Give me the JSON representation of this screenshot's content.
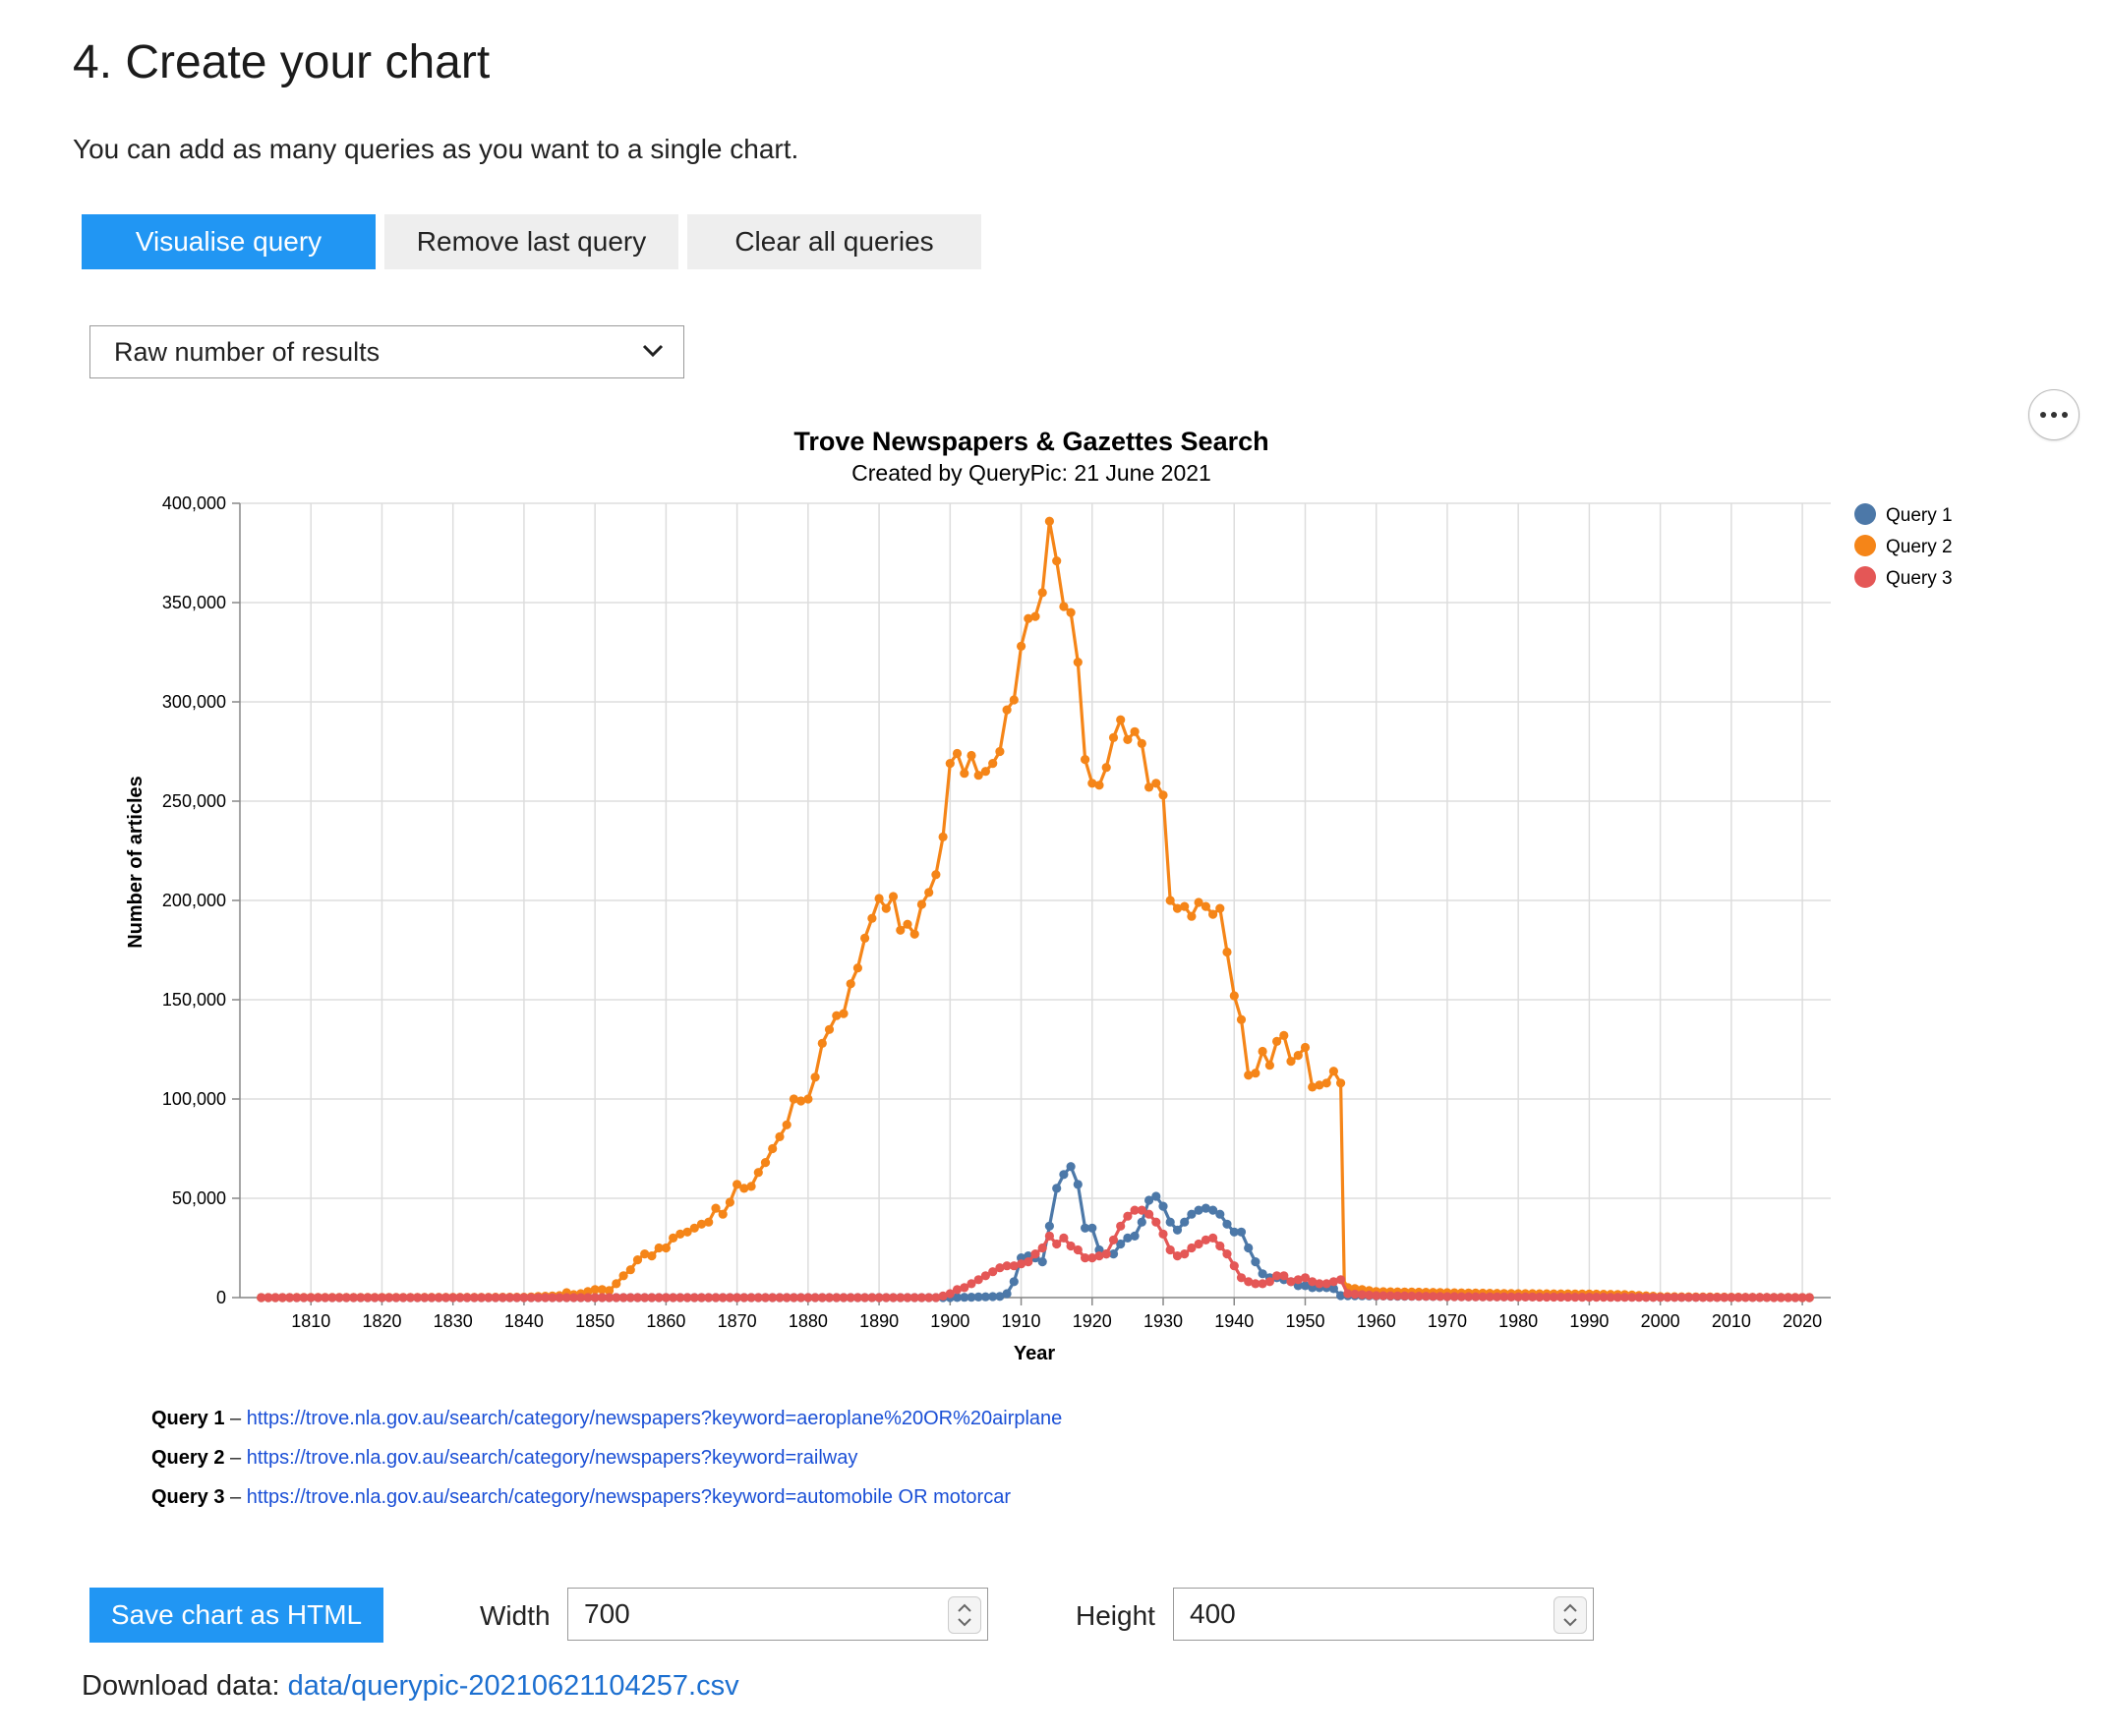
{
  "page": {
    "title": "4. Create your chart",
    "intro": "You can add as many queries as you want to a single chart."
  },
  "buttons": {
    "visualise": "Visualise query",
    "remove_last": "Remove last query",
    "clear_all": "Clear all queries",
    "save_html": "Save chart as HTML"
  },
  "select": {
    "value": "Raw number of results"
  },
  "colors": {
    "primary": "#2196f3",
    "query1": "#4c78a8",
    "query2": "#f58518",
    "query3": "#e45756",
    "link": "#1a4fd6"
  },
  "chart_data": {
    "type": "line",
    "title": "Trove Newspapers & Gazettes Search",
    "subtitle": "Created by QueryPic: 21 June 2021",
    "xlabel": "Year",
    "ylabel": "Number of articles",
    "xlim": [
      1800,
      2024
    ],
    "ylim": [
      0,
      400000
    ],
    "x_ticks": [
      1810,
      1820,
      1830,
      1840,
      1850,
      1860,
      1870,
      1880,
      1890,
      1900,
      1910,
      1920,
      1930,
      1940,
      1950,
      1960,
      1970,
      1980,
      1990,
      2000,
      2010,
      2020
    ],
    "y_ticks": [
      0,
      50000,
      100000,
      150000,
      200000,
      250000,
      300000,
      350000,
      400000
    ],
    "y_tick_labels": [
      "0",
      "50,000",
      "100,000",
      "150,000",
      "200,000",
      "250,000",
      "300,000",
      "350,000",
      "400,000"
    ],
    "grid": true,
    "legend_position": "top-right",
    "series": [
      {
        "name": "Query 1",
        "points": [
          [
            1803,
            0
          ],
          [
            1900,
            0
          ],
          [
            1903,
            200
          ],
          [
            1905,
            400
          ],
          [
            1907,
            600
          ],
          [
            1908,
            2000
          ],
          [
            1909,
            8000
          ],
          [
            1910,
            20000
          ],
          [
            1911,
            21000
          ],
          [
            1912,
            20000
          ],
          [
            1913,
            18000
          ],
          [
            1914,
            36000
          ],
          [
            1915,
            55000
          ],
          [
            1916,
            62000
          ],
          [
            1917,
            66000
          ],
          [
            1918,
            57000
          ],
          [
            1919,
            35000
          ],
          [
            1920,
            35000
          ],
          [
            1921,
            24000
          ],
          [
            1922,
            22000
          ],
          [
            1923,
            22000
          ],
          [
            1924,
            27000
          ],
          [
            1925,
            30000
          ],
          [
            1926,
            31000
          ],
          [
            1927,
            38000
          ],
          [
            1928,
            49000
          ],
          [
            1929,
            51000
          ],
          [
            1930,
            46000
          ],
          [
            1931,
            38000
          ],
          [
            1932,
            34000
          ],
          [
            1933,
            38000
          ],
          [
            1934,
            42000
          ],
          [
            1935,
            44000
          ],
          [
            1936,
            45000
          ],
          [
            1937,
            44000
          ],
          [
            1938,
            42000
          ],
          [
            1939,
            37000
          ],
          [
            1940,
            33000
          ],
          [
            1941,
            33000
          ],
          [
            1942,
            25000
          ],
          [
            1943,
            18000
          ],
          [
            1944,
            12000
          ],
          [
            1945,
            10000
          ],
          [
            1946,
            10000
          ],
          [
            1947,
            9000
          ],
          [
            1948,
            8000
          ],
          [
            1949,
            6000
          ],
          [
            1950,
            6000
          ],
          [
            1951,
            5000
          ],
          [
            1952,
            5000
          ],
          [
            1953,
            5000
          ],
          [
            1954,
            4500
          ],
          [
            1955,
            1000
          ],
          [
            1960,
            800
          ],
          [
            1970,
            500
          ],
          [
            1980,
            400
          ],
          [
            1990,
            300
          ],
          [
            2000,
            200
          ],
          [
            2010,
            100
          ],
          [
            2021,
            0
          ]
        ]
      },
      {
        "name": "Query 2",
        "points": [
          [
            1803,
            0
          ],
          [
            1840,
            200
          ],
          [
            1845,
            1000
          ],
          [
            1846,
            2500
          ],
          [
            1847,
            1500
          ],
          [
            1848,
            2000
          ],
          [
            1849,
            3000
          ],
          [
            1850,
            4000
          ],
          [
            1851,
            4000
          ],
          [
            1852,
            3500
          ],
          [
            1853,
            7000
          ],
          [
            1854,
            11000
          ],
          [
            1855,
            14000
          ],
          [
            1856,
            19000
          ],
          [
            1857,
            22000
          ],
          [
            1858,
            21000
          ],
          [
            1859,
            25000
          ],
          [
            1860,
            25000
          ],
          [
            1861,
            30000
          ],
          [
            1862,
            32000
          ],
          [
            1863,
            33000
          ],
          [
            1864,
            35000
          ],
          [
            1865,
            37000
          ],
          [
            1866,
            38000
          ],
          [
            1867,
            45000
          ],
          [
            1868,
            42000
          ],
          [
            1869,
            48000
          ],
          [
            1870,
            57000
          ],
          [
            1871,
            55000
          ],
          [
            1872,
            56000
          ],
          [
            1873,
            63000
          ],
          [
            1874,
            68000
          ],
          [
            1875,
            75000
          ],
          [
            1876,
            81000
          ],
          [
            1877,
            87000
          ],
          [
            1878,
            100000
          ],
          [
            1879,
            99000
          ],
          [
            1880,
            100000
          ],
          [
            1881,
            111000
          ],
          [
            1882,
            128000
          ],
          [
            1883,
            135000
          ],
          [
            1884,
            142000
          ],
          [
            1885,
            143000
          ],
          [
            1886,
            158000
          ],
          [
            1887,
            166000
          ],
          [
            1888,
            181000
          ],
          [
            1889,
            191000
          ],
          [
            1890,
            201000
          ],
          [
            1891,
            196000
          ],
          [
            1892,
            202000
          ],
          [
            1893,
            185000
          ],
          [
            1894,
            188000
          ],
          [
            1895,
            183000
          ],
          [
            1896,
            198000
          ],
          [
            1897,
            204000
          ],
          [
            1898,
            213000
          ],
          [
            1899,
            232000
          ],
          [
            1900,
            269000
          ],
          [
            1901,
            274000
          ],
          [
            1902,
            264000
          ],
          [
            1903,
            273000
          ],
          [
            1904,
            263000
          ],
          [
            1905,
            265000
          ],
          [
            1906,
            269000
          ],
          [
            1907,
            275000
          ],
          [
            1908,
            296000
          ],
          [
            1909,
            301000
          ],
          [
            1910,
            328000
          ],
          [
            1911,
            342000
          ],
          [
            1912,
            343000
          ],
          [
            1913,
            355000
          ],
          [
            1914,
            391000
          ],
          [
            1915,
            371000
          ],
          [
            1916,
            348000
          ],
          [
            1917,
            345000
          ],
          [
            1918,
            320000
          ],
          [
            1919,
            271000
          ],
          [
            1920,
            259000
          ],
          [
            1921,
            258000
          ],
          [
            1922,
            267000
          ],
          [
            1923,
            282000
          ],
          [
            1924,
            291000
          ],
          [
            1925,
            281000
          ],
          [
            1926,
            285000
          ],
          [
            1927,
            279000
          ],
          [
            1928,
            257000
          ],
          [
            1929,
            259000
          ],
          [
            1930,
            253000
          ],
          [
            1931,
            200000
          ],
          [
            1932,
            196000
          ],
          [
            1933,
            197000
          ],
          [
            1934,
            192000
          ],
          [
            1935,
            199000
          ],
          [
            1936,
            197000
          ],
          [
            1937,
            193000
          ],
          [
            1938,
            196000
          ],
          [
            1939,
            174000
          ],
          [
            1940,
            152000
          ],
          [
            1941,
            140000
          ],
          [
            1942,
            112000
          ],
          [
            1943,
            113000
          ],
          [
            1944,
            124000
          ],
          [
            1945,
            117000
          ],
          [
            1946,
            129000
          ],
          [
            1947,
            132000
          ],
          [
            1948,
            119000
          ],
          [
            1949,
            122000
          ],
          [
            1950,
            126000
          ],
          [
            1951,
            106000
          ],
          [
            1952,
            107000
          ],
          [
            1953,
            108000
          ],
          [
            1954,
            114000
          ],
          [
            1955,
            108000
          ],
          [
            1955.5,
            8000
          ],
          [
            1956,
            5000
          ],
          [
            1960,
            3000
          ],
          [
            1970,
            2500
          ],
          [
            1980,
            2000
          ],
          [
            1990,
            1800
          ],
          [
            1995,
            1500
          ],
          [
            2000,
            500
          ],
          [
            2010,
            200
          ],
          [
            2021,
            0
          ]
        ]
      },
      {
        "name": "Query 3",
        "points": [
          [
            1803,
            0
          ],
          [
            1898,
            0
          ],
          [
            1899,
            800
          ],
          [
            1900,
            2000
          ],
          [
            1901,
            4000
          ],
          [
            1902,
            5000
          ],
          [
            1903,
            7000
          ],
          [
            1904,
            9000
          ],
          [
            1905,
            11000
          ],
          [
            1906,
            13000
          ],
          [
            1907,
            15000
          ],
          [
            1908,
            16000
          ],
          [
            1909,
            16000
          ],
          [
            1910,
            17000
          ],
          [
            1911,
            18000
          ],
          [
            1912,
            22000
          ],
          [
            1913,
            25000
          ],
          [
            1914,
            31000
          ],
          [
            1915,
            27000
          ],
          [
            1916,
            30000
          ],
          [
            1917,
            26000
          ],
          [
            1918,
            24000
          ],
          [
            1919,
            20000
          ],
          [
            1920,
            20000
          ],
          [
            1921,
            21000
          ],
          [
            1922,
            22000
          ],
          [
            1923,
            29000
          ],
          [
            1924,
            36000
          ],
          [
            1925,
            41000
          ],
          [
            1926,
            44000
          ],
          [
            1927,
            44000
          ],
          [
            1928,
            42000
          ],
          [
            1929,
            38000
          ],
          [
            1930,
            32000
          ],
          [
            1931,
            24000
          ],
          [
            1932,
            21000
          ],
          [
            1933,
            22000
          ],
          [
            1934,
            25000
          ],
          [
            1935,
            27000
          ],
          [
            1936,
            29000
          ],
          [
            1937,
            30000
          ],
          [
            1938,
            26000
          ],
          [
            1939,
            22000
          ],
          [
            1940,
            16000
          ],
          [
            1941,
            10000
          ],
          [
            1942,
            8000
          ],
          [
            1943,
            7000
          ],
          [
            1944,
            7000
          ],
          [
            1945,
            8000
          ],
          [
            1946,
            11000
          ],
          [
            1947,
            11000
          ],
          [
            1948,
            8000
          ],
          [
            1949,
            9000
          ],
          [
            1950,
            10000
          ],
          [
            1951,
            8000
          ],
          [
            1952,
            7000
          ],
          [
            1953,
            7000
          ],
          [
            1954,
            8000
          ],
          [
            1955,
            9000
          ],
          [
            1956,
            2000
          ],
          [
            1960,
            1000
          ],
          [
            1970,
            500
          ],
          [
            1980,
            300
          ],
          [
            1990,
            200
          ],
          [
            2000,
            100
          ],
          [
            2010,
            50
          ],
          [
            2021,
            0
          ]
        ]
      }
    ]
  },
  "queries": [
    {
      "label": "Query 1",
      "url": "https://trove.nla.gov.au/search/category/newspapers?keyword=aeroplane%20OR%20airplane"
    },
    {
      "label": "Query 2",
      "url": "https://trove.nla.gov.au/search/category/newspapers?keyword=railway"
    },
    {
      "label": "Query 3",
      "url": "https://trove.nla.gov.au/search/category/newspapers?keyword=automobile OR motorcar"
    }
  ],
  "separator": "–",
  "export": {
    "width_label": "Width",
    "width_value": "700",
    "height_label": "Height",
    "height_value": "400"
  },
  "download": {
    "label": "Download data:",
    "link": "data/querypic-20210621104257.csv"
  }
}
